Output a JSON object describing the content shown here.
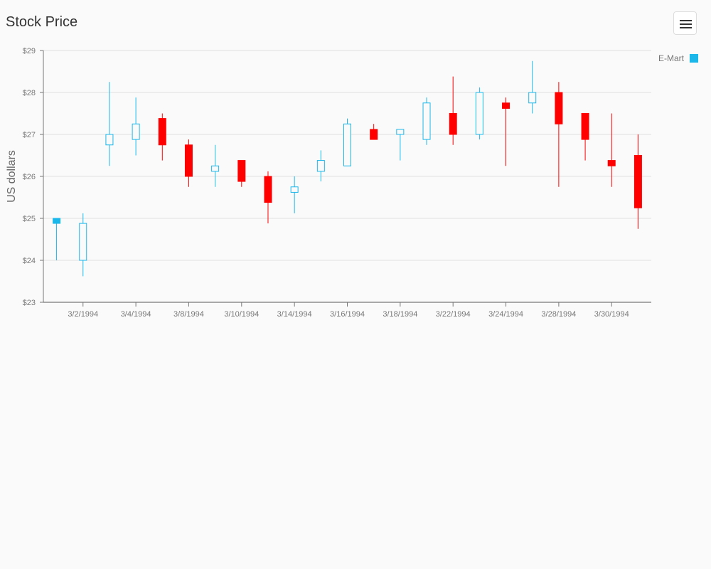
{
  "header": {
    "title": "Stock Price"
  },
  "toolbar": {
    "menu_icon": "hamburger-menu-icon"
  },
  "chart_data": {
    "type": "candlestick",
    "title": "Stock Price",
    "xlabel": "",
    "ylabel": "US dollars",
    "ylim": [
      23,
      29
    ],
    "y_ticks": [
      "$23",
      "$24",
      "$25",
      "$26",
      "$27",
      "$28",
      "$29"
    ],
    "x_ticks": [
      "3/2/1994",
      "3/4/1994",
      "3/8/1994",
      "3/10/1994",
      "3/14/1994",
      "3/16/1994",
      "3/18/1994",
      "3/22/1994",
      "3/24/1994",
      "3/28/1994",
      "3/30/1994"
    ],
    "grid": true,
    "legend": {
      "position": "top-right",
      "entries": [
        {
          "name": "E-Mart",
          "color": "#1ab7ea"
        }
      ]
    },
    "colors": {
      "up": "#1ab7ea",
      "down": "#ff0000"
    },
    "series": [
      {
        "name": "E-Mart",
        "points": [
          {
            "date": "3/1/1994",
            "open": 24.88,
            "high": 25.0,
            "low": 24.0,
            "close": 25.0,
            "fill": true
          },
          {
            "date": "3/2/1994",
            "open": 24.0,
            "high": 25.12,
            "low": 23.62,
            "close": 24.88
          },
          {
            "date": "3/3/1994",
            "open": 26.75,
            "high": 28.25,
            "low": 26.25,
            "close": 27.0
          },
          {
            "date": "3/4/1994",
            "open": 26.88,
            "high": 27.88,
            "low": 26.5,
            "close": 27.25
          },
          {
            "date": "3/7/1994",
            "open": 27.38,
            "high": 27.5,
            "low": 26.38,
            "close": 26.75
          },
          {
            "date": "3/8/1994",
            "open": 26.75,
            "high": 26.88,
            "low": 25.75,
            "close": 26.0
          },
          {
            "date": "3/9/1994",
            "open": 26.12,
            "high": 26.75,
            "low": 25.75,
            "close": 26.25
          },
          {
            "date": "3/10/1994",
            "open": 26.38,
            "high": 26.38,
            "low": 25.75,
            "close": 25.88
          },
          {
            "date": "3/11/1994",
            "open": 26.0,
            "high": 26.12,
            "low": 24.88,
            "close": 25.38
          },
          {
            "date": "3/14/1994",
            "open": 25.62,
            "high": 26.0,
            "low": 25.12,
            "close": 25.75
          },
          {
            "date": "3/15/1994",
            "open": 26.12,
            "high": 26.62,
            "low": 25.88,
            "close": 26.38
          },
          {
            "date": "3/16/1994",
            "open": 26.25,
            "high": 27.38,
            "low": 26.25,
            "close": 27.25
          },
          {
            "date": "3/17/1994",
            "open": 27.12,
            "high": 27.25,
            "low": 26.88,
            "close": 26.88
          },
          {
            "date": "3/18/1994",
            "open": 27.0,
            "high": 27.12,
            "low": 26.38,
            "close": 27.12
          },
          {
            "date": "3/21/1994",
            "open": 26.88,
            "high": 27.88,
            "low": 26.75,
            "close": 27.75
          },
          {
            "date": "3/22/1994",
            "open": 27.5,
            "high": 28.38,
            "low": 26.75,
            "close": 27.0
          },
          {
            "date": "3/23/1994",
            "open": 27.0,
            "high": 28.12,
            "low": 26.88,
            "close": 28.0
          },
          {
            "date": "3/24/1994",
            "open": 27.75,
            "high": 27.88,
            "low": 26.25,
            "close": 27.62
          },
          {
            "date": "3/25/1994",
            "open": 27.75,
            "high": 28.75,
            "low": 27.5,
            "close": 28.0
          },
          {
            "date": "3/28/1994",
            "open": 28.0,
            "high": 28.25,
            "low": 25.75,
            "close": 27.25
          },
          {
            "date": "3/29/1994",
            "open": 27.5,
            "high": 27.5,
            "low": 26.38,
            "close": 26.88
          },
          {
            "date": "3/30/1994",
            "open": 26.38,
            "high": 27.5,
            "low": 25.75,
            "close": 26.25
          },
          {
            "date": "3/31/1994",
            "open": 26.5,
            "high": 27.0,
            "low": 24.75,
            "close": 25.25
          }
        ]
      }
    ]
  }
}
